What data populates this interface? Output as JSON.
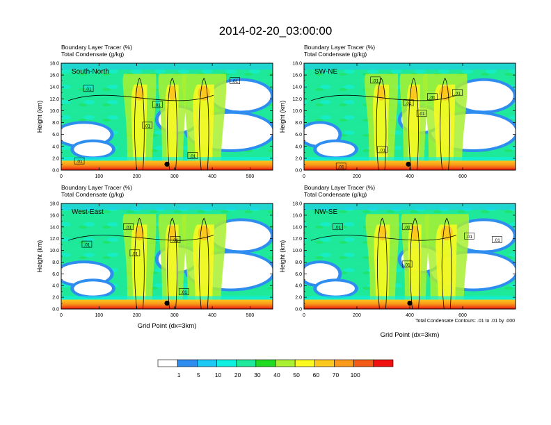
{
  "title": "2014-02-20_03:00:00",
  "panel_header": {
    "line1": "Boundary Layer Tracer   (%)",
    "line2": "Total Condensate   (g/kg)"
  },
  "contour_note": "Total Condensate Contours: .01 to .01 by .000",
  "colors": {
    "bins": [
      "#ffffff",
      "#2f8df0",
      "#1ec8f5",
      "#10f0e0",
      "#1ee89a",
      "#20dc20",
      "#a8f030",
      "#fafa20",
      "#fcc81e",
      "#fa9a18",
      "#f25a16",
      "#f01010"
    ],
    "contour": "#000000",
    "marker": "#000000"
  },
  "colorbar": {
    "labels": [
      "1",
      "5",
      "10",
      "20",
      "30",
      "40",
      "50",
      "60",
      "70",
      "100"
    ]
  },
  "chart_data": [
    {
      "type": "heatmap",
      "panel": "South-North",
      "xlabel": "",
      "ylabel": "Height (km)",
      "xlim": [
        0,
        560
      ],
      "ylim": [
        0,
        18
      ],
      "xticks": [
        "0",
        "100",
        "200",
        "300",
        "400",
        "500"
      ],
      "yticks": [
        "0.0",
        "2.0",
        "4.0",
        "6.0",
        "8.0",
        "10.0",
        "12.0",
        "14.0",
        "16.0",
        "18.0"
      ],
      "contour_labels": [
        {
          "text": ".01",
          "x": 72,
          "y": 13.7
        },
        {
          "text": ".01",
          "x": 255,
          "y": 11.0
        },
        {
          "text": ".01",
          "x": 228,
          "y": 7.5
        },
        {
          "text": ".01",
          "x": 348,
          "y": 2.4
        },
        {
          "text": ".01",
          "x": 48,
          "y": 1.5
        },
        {
          "text": ".01",
          "x": 460,
          "y": 15.0
        }
      ],
      "marker": {
        "x": 280,
        "y": 1.0
      }
    },
    {
      "type": "heatmap",
      "panel": "SW-NE",
      "xlabel": "",
      "ylabel": "Height (km)",
      "xlim": [
        0,
        800
      ],
      "ylim": [
        0,
        18
      ],
      "xticks": [
        "0",
        "200",
        "400",
        "600"
      ],
      "yticks": [
        "0.0",
        "2.0",
        "4.0",
        "6.0",
        "8.0",
        "10.0",
        "12.0",
        "14.0",
        "16.0",
        "18.0"
      ],
      "contour_labels": [
        {
          "text": ".01",
          "x": 270,
          "y": 15.1
        },
        {
          "text": ".01",
          "x": 395,
          "y": 11.3
        },
        {
          "text": ".01",
          "x": 445,
          "y": 9.5
        },
        {
          "text": ".01",
          "x": 485,
          "y": 12.3
        },
        {
          "text": ".01",
          "x": 580,
          "y": 13.0
        },
        {
          "text": ".01",
          "x": 296,
          "y": 3.4
        },
        {
          "text": ".01",
          "x": 140,
          "y": 0.6
        }
      ],
      "marker": {
        "x": 395,
        "y": 1.0
      }
    },
    {
      "type": "heatmap",
      "panel": "West-East",
      "xlabel": "Grid Point (dx=3km)",
      "ylabel": "Height (km)",
      "xlim": [
        0,
        560
      ],
      "ylim": [
        0,
        18
      ],
      "xticks": [
        "0",
        "100",
        "200",
        "300",
        "400",
        "500"
      ],
      "yticks": [
        "0.0",
        "2.0",
        "4.0",
        "6.0",
        "8.0",
        "10.0",
        "12.0",
        "14.0",
        "16.0",
        "18.0"
      ],
      "contour_labels": [
        {
          "text": ".01",
          "x": 68,
          "y": 11.0
        },
        {
          "text": ".01",
          "x": 178,
          "y": 14.0
        },
        {
          "text": ".01",
          "x": 195,
          "y": 9.5
        },
        {
          "text": ".01",
          "x": 302,
          "y": 11.8
        },
        {
          "text": ".01",
          "x": 325,
          "y": 2.9
        }
      ],
      "marker": {
        "x": 280,
        "y": 1.0
      }
    },
    {
      "type": "heatmap",
      "panel": "NW-SE",
      "xlabel": "Grid Point (dx=3km)",
      "ylabel": "Height (km)",
      "xlim": [
        0,
        800
      ],
      "ylim": [
        0,
        18
      ],
      "xticks": [
        "0",
        "200",
        "400",
        "600"
      ],
      "yticks": [
        "0.0",
        "2.0",
        "4.0",
        "6.0",
        "8.0",
        "10.0",
        "12.0",
        "14.0",
        "16.0",
        "18.0"
      ],
      "contour_labels": [
        {
          "text": ".01",
          "x": 128,
          "y": 14.0
        },
        {
          "text": ".01",
          "x": 390,
          "y": 14.0
        },
        {
          "text": ".01",
          "x": 390,
          "y": 7.6
        },
        {
          "text": ".01",
          "x": 625,
          "y": 12.4
        },
        {
          "text": ".01",
          "x": 730,
          "y": 11.8
        }
      ],
      "marker": {
        "x": 400,
        "y": 1.0
      }
    }
  ]
}
